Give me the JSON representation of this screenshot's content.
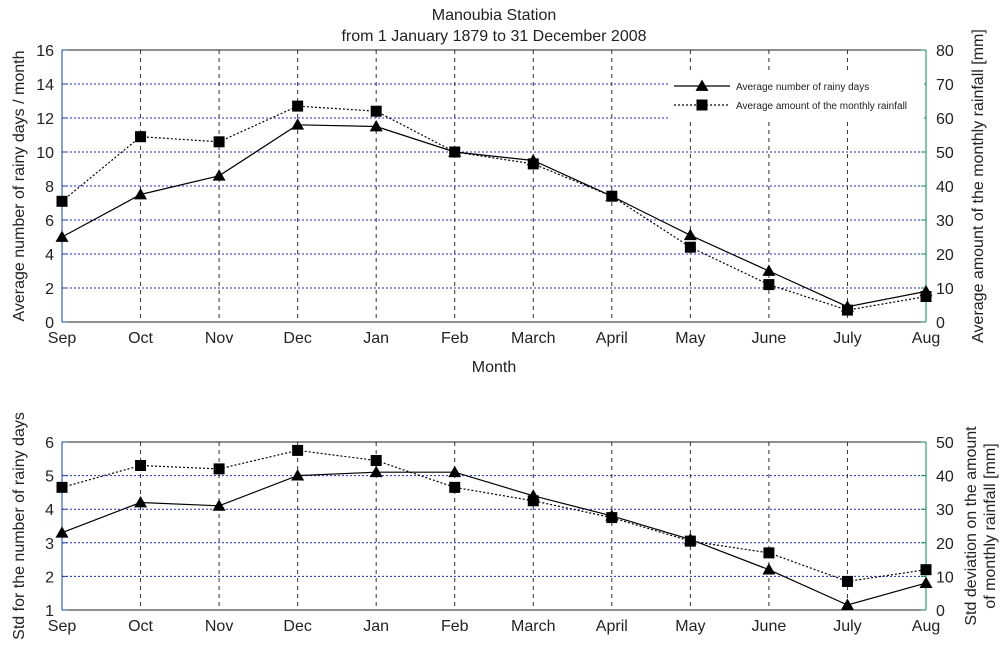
{
  "colors": {
    "left_axis": "#1a3fa6",
    "right_axis": "#0e8a55",
    "gridline": "#1c2fb0",
    "series": "#000000"
  },
  "chart_data": [
    {
      "type": "line",
      "title": "Manoubia Station",
      "subtitle": "from 1 January 1879 to 31 December 2008",
      "xlabel": "Month",
      "ylabel_left": "Average number of rainy days / month",
      "ylabel_right": "Average amount of the monthly rainfall [mm]",
      "categories": [
        "Sep",
        "Oct",
        "Nov",
        "Dec",
        "Jan",
        "Feb",
        "March",
        "April",
        "May",
        "June",
        "July",
        "Aug"
      ],
      "ylim_left": [
        0,
        16
      ],
      "yticks_left": [
        "0",
        "2",
        "4",
        "6",
        "8",
        "10",
        "12",
        "14",
        "16"
      ],
      "ylim_right": [
        0,
        80
      ],
      "yticks_right": [
        "0",
        "10",
        "20",
        "30",
        "40",
        "50",
        "60",
        "70",
        "80"
      ],
      "grid": true,
      "legend_position": "top-right",
      "series": [
        {
          "name": "Average number of rainy days",
          "axis": "left",
          "marker": "triangle",
          "line_style": "solid",
          "values": [
            5.0,
            7.5,
            8.6,
            11.6,
            11.5,
            10.0,
            9.5,
            7.4,
            5.1,
            3.0,
            0.9,
            1.8
          ]
        },
        {
          "name": "Average amount of the monthly rainfall",
          "axis": "right",
          "marker": "square",
          "line_style": "dotted",
          "values": [
            35.5,
            54.5,
            53.0,
            63.5,
            62.0,
            50.0,
            46.5,
            37.0,
            22.0,
            11.0,
            3.5,
            7.5
          ]
        }
      ]
    },
    {
      "type": "line",
      "ylabel_left": "Std for the number of rainy days",
      "ylabel_right": [
        "Std deviation on the amount",
        "of monthly rainfall [mm]"
      ],
      "categories": [
        "Sep",
        "Oct",
        "Nov",
        "Dec",
        "Jan",
        "Feb",
        "March",
        "April",
        "May",
        "June",
        "July",
        "Aug"
      ],
      "ylim_left": [
        1,
        6
      ],
      "yticks_left": [
        "1",
        "2",
        "3",
        "4",
        "5",
        "6"
      ],
      "ylim_right": [
        0,
        50
      ],
      "yticks_right": [
        "0",
        "10",
        "20",
        "30",
        "40",
        "50"
      ],
      "grid": true,
      "series": [
        {
          "axis": "left",
          "marker": "triangle",
          "line_style": "solid",
          "values": [
            3.3,
            4.2,
            4.1,
            5.0,
            5.1,
            5.1,
            4.4,
            3.8,
            3.1,
            2.2,
            1.15,
            1.8
          ]
        },
        {
          "axis": "right",
          "marker": "square",
          "line_style": "dotted",
          "values": [
            36.5,
            43.0,
            42.0,
            47.5,
            44.5,
            36.5,
            32.5,
            27.5,
            20.5,
            17.0,
            8.5,
            12.0
          ]
        }
      ]
    }
  ]
}
